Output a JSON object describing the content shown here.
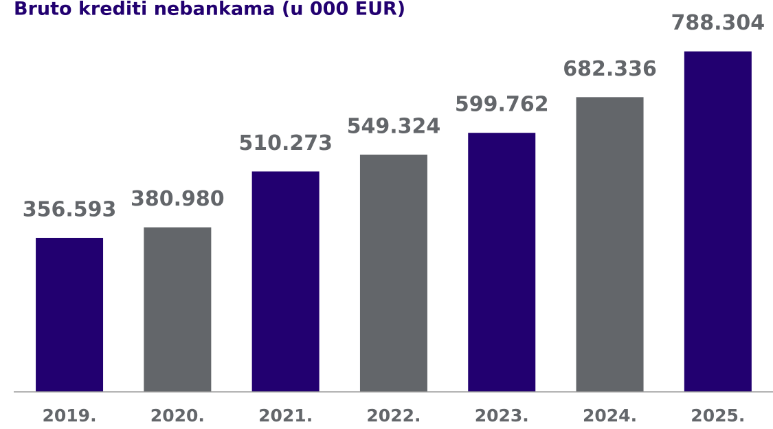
{
  "chart_data": {
    "type": "bar",
    "title": "Bruto krediti nebankama (u 000 EUR)",
    "categories": [
      "2019.",
      "2020.",
      "2021.",
      "2022.",
      "2023.",
      "2024.",
      "2025."
    ],
    "values": [
      356593,
      380980,
      510273,
      549324,
      599762,
      682336,
      788304
    ],
    "value_labels": [
      "356.593",
      "380.980",
      "510.273",
      "549.324",
      "599.762",
      "682.336",
      "788.304"
    ],
    "colors": [
      "#220070",
      "#63666a",
      "#220070",
      "#63666a",
      "#220070",
      "#63666a",
      "#220070"
    ],
    "ylim": [
      0,
      800000
    ]
  }
}
